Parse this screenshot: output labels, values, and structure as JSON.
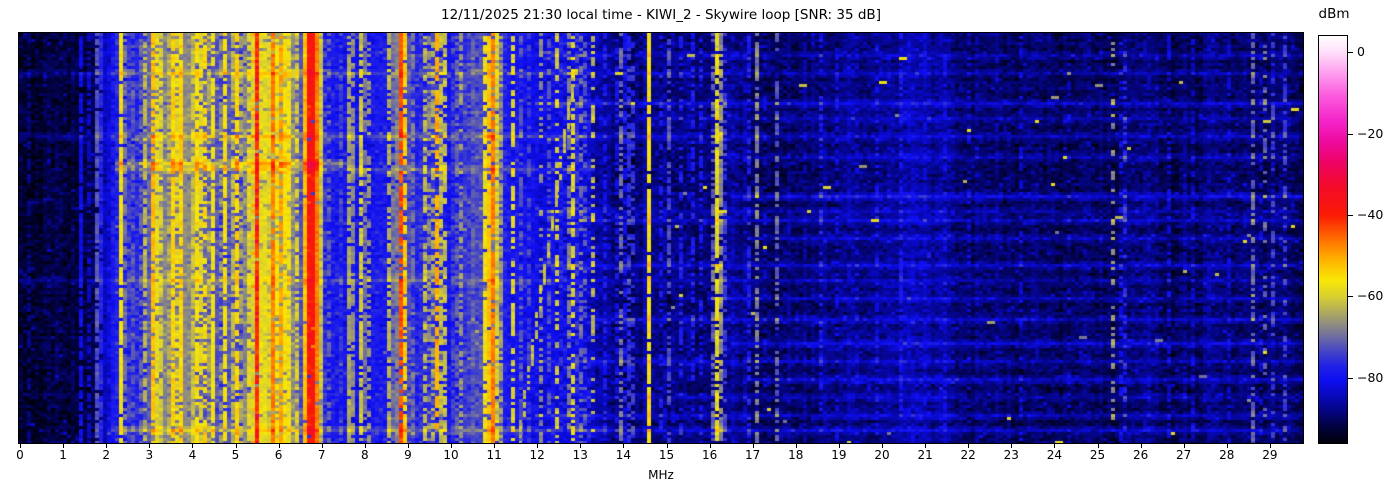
{
  "figure": {
    "title": "12/11/2025 21:30 local time - KIWI_2 - Skywire loop [SNR: 35 dB]"
  },
  "x_axis": {
    "label": "MHz",
    "tick_labels": [
      "0",
      "1",
      "2",
      "3",
      "4",
      "5",
      "6",
      "7",
      "8",
      "9",
      "10",
      "11",
      "12",
      "13",
      "14",
      "15",
      "16",
      "17",
      "18",
      "19",
      "20",
      "21",
      "22",
      "23",
      "24",
      "25",
      "26",
      "27",
      "28",
      "29"
    ]
  },
  "colorbar": {
    "label": "dBm",
    "tick_labels": [
      "0",
      "−20",
      "−40",
      "−60",
      "−80"
    ],
    "tick_values": [
      0,
      -20,
      -40,
      -60,
      -80
    ],
    "vmax_dbm": 4,
    "vmin_dbm": -96,
    "gradient_stops": [
      [
        0.0,
        "#ffffff"
      ],
      [
        0.04,
        "#ffdffa"
      ],
      [
        0.09,
        "#ff9ff0"
      ],
      [
        0.15,
        "#fb57dd"
      ],
      [
        0.21,
        "#f424c9"
      ],
      [
        0.26,
        "#ee0a9e"
      ],
      [
        0.31,
        "#ee0366"
      ],
      [
        0.37,
        "#f40b2a"
      ],
      [
        0.44,
        "#fb1a04"
      ],
      [
        0.5,
        "#ff6f00"
      ],
      [
        0.55,
        "#ffb300"
      ],
      [
        0.6,
        "#f8e705"
      ],
      [
        0.64,
        "#d8d030"
      ],
      [
        0.69,
        "#a29e6c"
      ],
      [
        0.73,
        "#787699"
      ],
      [
        0.77,
        "#4a4ac2"
      ],
      [
        0.81,
        "#2222e6"
      ],
      [
        0.845,
        "#0e0ef2"
      ],
      [
        0.88,
        "#0909c2"
      ],
      [
        0.92,
        "#050585"
      ],
      [
        0.96,
        "#020240"
      ],
      [
        1.0,
        "#00000a"
      ]
    ]
  },
  "chart_data": {
    "type": "heatmap",
    "title": "12/11/2025 21:30 local time - KIWI_2 - Skywire loop [SNR: 35 dB]",
    "xlabel": "MHz",
    "x_range_mhz": [
      0,
      29.8
    ],
    "x_ticks_mhz": [
      0,
      1,
      2,
      3,
      4,
      5,
      6,
      7,
      8,
      9,
      10,
      11,
      12,
      13,
      14,
      15,
      16,
      17,
      18,
      19,
      20,
      21,
      22,
      23,
      24,
      25,
      26,
      27,
      28,
      29
    ],
    "y_axis": "time (no ticks shown, newest at top)",
    "value_unit": "dBm",
    "value_range_dbm": [
      -96,
      4
    ],
    "colorbar_ticks_dbm": [
      0,
      -20,
      -40,
      -60,
      -80
    ],
    "noise_floor_dbm": [
      [
        0,
        -93
      ],
      [
        1.3,
        -93
      ],
      [
        1.7,
        -91
      ],
      [
        2.0,
        -86
      ],
      [
        2.25,
        -80
      ],
      [
        2.55,
        -78
      ],
      [
        2.9,
        -77
      ],
      [
        3.15,
        -70
      ],
      [
        3.6,
        -68
      ],
      [
        4.25,
        -70
      ],
      [
        4.7,
        -73
      ],
      [
        5.1,
        -73
      ],
      [
        5.45,
        -68
      ],
      [
        5.7,
        -64
      ],
      [
        6.35,
        -66
      ],
      [
        6.55,
        -72
      ],
      [
        7.05,
        -78
      ],
      [
        7.5,
        -81
      ],
      [
        8.0,
        -80
      ],
      [
        8.6,
        -79
      ],
      [
        8.9,
        -72
      ],
      [
        9.2,
        -78
      ],
      [
        9.6,
        -75
      ],
      [
        10.0,
        -80
      ],
      [
        10.7,
        -72
      ],
      [
        11.15,
        -74
      ],
      [
        11.5,
        -80
      ],
      [
        12.3,
        -82
      ],
      [
        13.1,
        -83
      ],
      [
        13.45,
        -87
      ],
      [
        14.0,
        -88.5
      ],
      [
        16.0,
        -89
      ],
      [
        18.0,
        -89
      ],
      [
        19.2,
        -87.5
      ],
      [
        20.5,
        -86
      ],
      [
        21.8,
        -87.5
      ],
      [
        23.0,
        -89.5
      ],
      [
        24.5,
        -90.5
      ],
      [
        27.0,
        -90.5
      ],
      [
        29.8,
        -90
      ]
    ],
    "signals_mhz_width_peak_duty": [
      [
        0.25,
        0.04,
        -87,
        0.5
      ],
      [
        0.95,
        0.04,
        -89,
        0.4
      ],
      [
        1.43,
        0.05,
        -81,
        0.85
      ],
      [
        1.62,
        0.04,
        -84,
        0.6
      ],
      [
        1.85,
        0.04,
        -66,
        0.85
      ],
      [
        2.03,
        0.04,
        -80,
        0.7
      ],
      [
        2.17,
        0.04,
        -78,
        0.6
      ],
      [
        2.36,
        0.05,
        -57,
        0.92
      ],
      [
        2.5,
        0.05,
        -63,
        0.7
      ],
      [
        2.65,
        0.04,
        -72,
        0.6
      ],
      [
        2.8,
        0.04,
        -67,
        0.55
      ],
      [
        2.95,
        0.05,
        -60,
        0.7
      ],
      [
        3.1,
        0.06,
        -52,
        0.8
      ],
      [
        3.22,
        0.05,
        -57,
        0.85
      ],
      [
        3.33,
        0.05,
        -55,
        0.8
      ],
      [
        3.45,
        0.05,
        -60,
        0.7
      ],
      [
        3.57,
        0.05,
        -54,
        0.85
      ],
      [
        3.68,
        0.04,
        -58,
        0.6
      ],
      [
        3.78,
        0.06,
        -53,
        0.9
      ],
      [
        3.9,
        0.04,
        -59,
        0.7
      ],
      [
        4.0,
        0.05,
        -56,
        0.75
      ],
      [
        4.1,
        0.05,
        -52,
        0.8
      ],
      [
        4.23,
        0.04,
        -59,
        0.7
      ],
      [
        4.35,
        0.04,
        -50,
        0.6
      ],
      [
        4.5,
        0.05,
        -57,
        0.8
      ],
      [
        4.65,
        0.04,
        -61,
        0.6
      ],
      [
        4.8,
        0.05,
        -55,
        0.8
      ],
      [
        4.93,
        0.04,
        -58,
        0.7
      ],
      [
        5.05,
        0.05,
        -54,
        0.75
      ],
      [
        5.18,
        0.04,
        -61,
        0.6
      ],
      [
        5.3,
        0.05,
        -54,
        0.8
      ],
      [
        5.5,
        0.05,
        -40,
        0.95
      ],
      [
        5.5,
        0.04,
        -30,
        0.18
      ],
      [
        5.66,
        0.08,
        -55,
        0.95
      ],
      [
        5.8,
        0.05,
        -59,
        0.8
      ],
      [
        5.89,
        0.05,
        -47,
        0.85
      ],
      [
        6.04,
        0.04,
        -44,
        0.6
      ],
      [
        6.15,
        0.06,
        -54,
        0.85
      ],
      [
        6.28,
        0.05,
        -56,
        0.8
      ],
      [
        6.45,
        0.04,
        -60,
        0.6
      ],
      [
        6.79,
        0.13,
        -38,
        0.98
      ],
      [
        6.76,
        0.04,
        -32,
        0.5
      ],
      [
        6.97,
        0.04,
        -56,
        0.8
      ],
      [
        7.15,
        0.04,
        -64,
        0.5
      ],
      [
        7.32,
        0.04,
        -73,
        0.6
      ],
      [
        7.5,
        0.03,
        -70,
        0.45
      ],
      [
        7.7,
        0.04,
        -57,
        0.8
      ],
      [
        7.97,
        0.04,
        -56,
        0.75
      ],
      [
        8.12,
        0.04,
        -66,
        0.5
      ],
      [
        8.35,
        0.03,
        -72,
        0.5
      ],
      [
        8.62,
        0.05,
        -58,
        0.7
      ],
      [
        8.72,
        0.04,
        -62,
        0.6
      ],
      [
        8.85,
        0.05,
        -43,
        0.9
      ],
      [
        8.97,
        0.05,
        -53,
        0.8
      ],
      [
        9.1,
        0.04,
        -62,
        0.6
      ],
      [
        9.46,
        0.04,
        -56,
        0.6
      ],
      [
        9.6,
        0.04,
        -64,
        0.5
      ],
      [
        9.73,
        0.05,
        -47,
        0.75
      ],
      [
        9.85,
        0.04,
        -57,
        0.6
      ],
      [
        10.12,
        0.04,
        -64,
        0.6
      ],
      [
        10.25,
        0.04,
        -66,
        0.55
      ],
      [
        10.55,
        0.03,
        -70,
        0.45
      ],
      [
        10.8,
        0.06,
        -57,
        0.85
      ],
      [
        10.92,
        0.06,
        -52,
        0.9
      ],
      [
        11.02,
        0.05,
        -45,
        0.85
      ],
      [
        11.12,
        0.05,
        -56,
        0.8
      ],
      [
        11.2,
        0.04,
        -64,
        0.6
      ],
      [
        11.48,
        0.04,
        -58,
        0.6
      ],
      [
        11.65,
        0.03,
        -72,
        0.5
      ],
      [
        11.8,
        0.03,
        -70,
        0.5
      ],
      [
        11.97,
        0.03,
        -73,
        0.45
      ],
      [
        12.1,
        0.03,
        -67,
        0.45
      ],
      [
        12.28,
        0.03,
        -71,
        0.4
      ],
      [
        12.47,
        0.04,
        -61,
        0.45
      ],
      [
        12.62,
        0.03,
        -69,
        0.4
      ],
      [
        12.82,
        0.04,
        -55,
        0.6
      ],
      [
        13.0,
        0.03,
        -64,
        0.5
      ],
      [
        13.17,
        0.03,
        -67,
        0.4
      ],
      [
        13.3,
        0.03,
        -62,
        0.35
      ],
      [
        13.62,
        0.03,
        -77,
        0.5
      ],
      [
        13.88,
        0.03,
        -80,
        0.4
      ],
      [
        14.0,
        0.04,
        -66,
        0.55
      ],
      [
        14.12,
        0.04,
        -72,
        0.6
      ],
      [
        14.25,
        0.03,
        -76,
        0.45
      ],
      [
        14.61,
        0.025,
        -56,
        0.92
      ],
      [
        14.9,
        0.03,
        -79,
        0.4
      ],
      [
        15.05,
        0.04,
        -70,
        0.6
      ],
      [
        15.35,
        0.03,
        -78,
        0.4
      ],
      [
        15.6,
        0.03,
        -73,
        0.45
      ],
      [
        15.85,
        0.03,
        -77,
        0.4
      ],
      [
        16.1,
        0.03,
        -72,
        0.5
      ],
      [
        16.23,
        0.03,
        -54,
        0.85
      ],
      [
        16.4,
        0.03,
        -74,
        0.45
      ],
      [
        16.6,
        0.03,
        -80,
        0.35
      ],
      [
        16.9,
        0.03,
        -73,
        0.5
      ],
      [
        17.12,
        0.04,
        -69,
        0.6
      ],
      [
        17.35,
        0.03,
        -78,
        0.35
      ],
      [
        17.57,
        0.04,
        -71,
        0.5
      ],
      [
        17.82,
        0.03,
        -79,
        0.35
      ],
      [
        18.2,
        0.03,
        -81,
        0.4
      ],
      [
        18.6,
        0.03,
        -79,
        0.4
      ],
      [
        19.0,
        0.03,
        -81,
        0.35
      ],
      [
        19.45,
        0.03,
        -82,
        0.3
      ],
      [
        19.9,
        0.03,
        -81,
        0.35
      ],
      [
        20.45,
        0.03,
        -79,
        0.4
      ],
      [
        21.0,
        0.03,
        -81,
        0.35
      ],
      [
        21.5,
        0.03,
        -81,
        0.3
      ],
      [
        22.05,
        0.03,
        -83,
        0.3
      ],
      [
        22.55,
        0.03,
        -81,
        0.3
      ],
      [
        23.25,
        0.03,
        -83,
        0.3
      ],
      [
        24.35,
        0.03,
        -83,
        0.3
      ],
      [
        25.37,
        0.04,
        -67,
        0.35
      ],
      [
        25.62,
        0.03,
        -70,
        0.3
      ],
      [
        26.25,
        0.03,
        -81,
        0.35
      ],
      [
        26.65,
        0.03,
        -79,
        0.35
      ],
      [
        27.25,
        0.03,
        -83,
        0.3
      ],
      [
        28.05,
        0.03,
        -81,
        0.3
      ],
      [
        28.62,
        0.04,
        -71,
        0.6
      ],
      [
        28.88,
        0.04,
        -68,
        0.4
      ],
      [
        29.12,
        0.04,
        -73,
        0.35
      ],
      [
        29.38,
        0.04,
        -75,
        0.4
      ]
    ],
    "time_events_yfrac_boost_f0_f1": [
      [
        0.055,
        4,
        12,
        29.8
      ],
      [
        0.1,
        5,
        0,
        29.8
      ],
      [
        0.17,
        7,
        12,
        29.8
      ],
      [
        0.205,
        4,
        13,
        29.8
      ],
      [
        0.255,
        6,
        0,
        29.8
      ],
      [
        0.305,
        5,
        16,
        29.8
      ],
      [
        0.317,
        9,
        2.2,
        7.6
      ],
      [
        0.335,
        6,
        2.2,
        13.4
      ],
      [
        0.4,
        8,
        16.5,
        29.8
      ],
      [
        0.435,
        4,
        12,
        29.8
      ],
      [
        0.455,
        6,
        13,
        29.8
      ],
      [
        0.5,
        5,
        17,
        29.8
      ],
      [
        0.565,
        6,
        12,
        29.8
      ],
      [
        0.6,
        4,
        0,
        29.8
      ],
      [
        0.645,
        5,
        16,
        29.8
      ],
      [
        0.7,
        6,
        13.4,
        29.8
      ],
      [
        0.755,
        7,
        16.5,
        29.8
      ],
      [
        0.8,
        5,
        12,
        29.8
      ],
      [
        0.845,
        6,
        17,
        29.8
      ],
      [
        0.89,
        4,
        13,
        29.8
      ],
      [
        0.93,
        5,
        12,
        29.8
      ],
      [
        0.965,
        6,
        2.0,
        29.8
      ]
    ],
    "chirp_sweep": {
      "f_start_mhz": 11.6,
      "f_end_mhz": 12.95,
      "y_start_frac": 1.0,
      "y_end_frac": 0.07,
      "level_dbm": -62,
      "duty": 0.75
    },
    "sparks": {
      "count": 55,
      "f_range_mhz": [
        13.2,
        29.6
      ],
      "level_dbm_range": [
        -70,
        -56
      ]
    }
  }
}
